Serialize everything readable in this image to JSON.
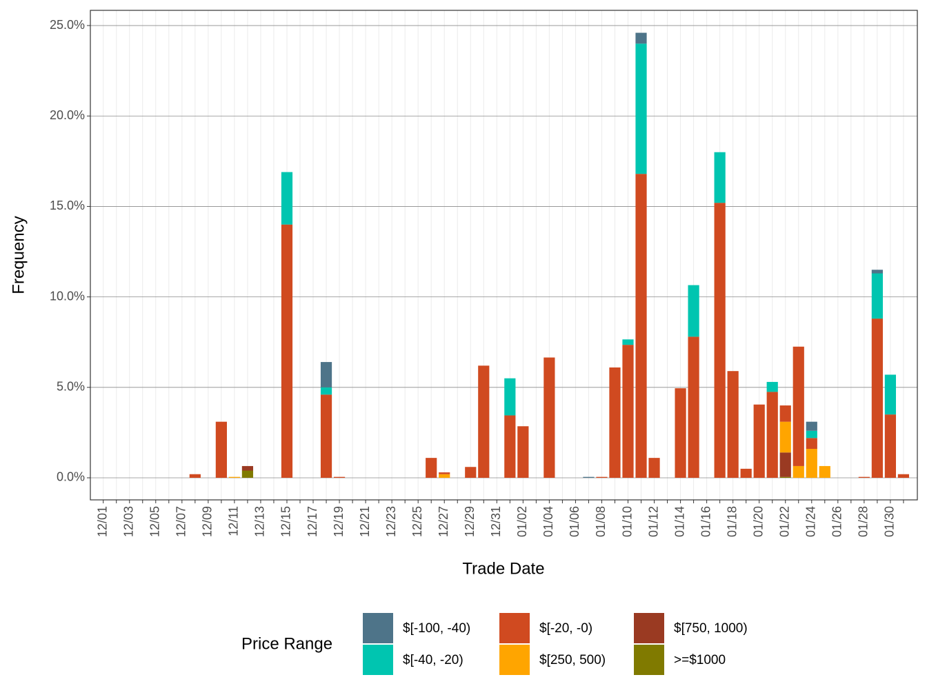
{
  "chart_data": {
    "type": "bar",
    "stacked": true,
    "grid": true,
    "legend": "bottom",
    "x_label": "Trade Date",
    "y_label": "Frequency",
    "legend_title": "Price Range",
    "categories": [
      "12/01",
      null,
      "12/03",
      null,
      "12/05",
      null,
      "12/07",
      null,
      "12/09",
      null,
      "12/11",
      null,
      "12/13",
      null,
      "12/15",
      null,
      "12/17",
      null,
      "12/19",
      null,
      "12/21",
      null,
      "12/23",
      null,
      "12/25",
      null,
      "12/27",
      null,
      "12/29",
      null,
      "12/31",
      null,
      "01/02",
      null,
      "01/04",
      null,
      "01/06",
      null,
      "01/08",
      null,
      "01/10",
      null,
      "01/12",
      null,
      "01/14",
      null,
      "01/16",
      null,
      "01/18",
      null,
      "01/20",
      null,
      "01/22",
      null,
      "01/24",
      null,
      "01/26",
      null,
      "01/28",
      null,
      "01/30",
      null
    ],
    "ylim": [
      -1.22,
      25.84
    ],
    "yticks": [
      {
        "value": 0,
        "label": "0.0%"
      },
      {
        "value": 5,
        "label": "5.0%"
      },
      {
        "value": 10,
        "label": "10.0%"
      },
      {
        "value": 15,
        "label": "15.0%"
      },
      {
        "value": 20,
        "label": "20.0%"
      },
      {
        "value": 25,
        "label": "25.0%"
      }
    ],
    "series": [
      {
        "name": "$[-100, -40)",
        "color": "#4e7489",
        "values": [
          0,
          0,
          0,
          0,
          0,
          0,
          0,
          0,
          0,
          0,
          0,
          0,
          0,
          0,
          0,
          0,
          0,
          1.4,
          0,
          0,
          0,
          0,
          0,
          0,
          0,
          0,
          0,
          0,
          0,
          0,
          0,
          0,
          0,
          0,
          0,
          0,
          0,
          0.05,
          0,
          0,
          0,
          0.6,
          0,
          0,
          0,
          0,
          0,
          0,
          0,
          0,
          0,
          0,
          0,
          0,
          0.5,
          0,
          0,
          0,
          0,
          0.2,
          0,
          0
        ]
      },
      {
        "name": "$[-40, -20)",
        "color": "#00c5b0",
        "values": [
          0,
          0,
          0,
          0,
          0,
          0,
          0,
          0,
          0,
          0,
          0,
          0,
          0,
          0,
          2.9,
          0,
          0,
          0.4,
          0,
          0,
          0,
          0,
          0,
          0,
          0,
          0,
          0,
          0,
          0,
          0,
          0,
          2.05,
          0,
          0,
          0,
          0,
          0,
          0,
          0,
          0,
          0.3,
          7.2,
          0,
          0,
          0,
          2.85,
          0,
          2.8,
          0,
          0,
          0,
          0.55,
          0,
          0,
          0.4,
          0,
          0,
          0,
          0,
          2.5,
          2.2,
          0
        ]
      },
      {
        "name": "$[-20, -0)",
        "color": "#d04a20",
        "values": [
          0,
          0,
          0,
          0,
          0,
          0,
          0,
          0.2,
          0,
          3.1,
          0,
          0,
          0,
          0,
          14.0,
          0,
          0,
          4.6,
          0.05,
          0,
          0,
          0,
          0,
          0,
          0,
          1.1,
          0.1,
          0,
          0.6,
          6.2,
          0,
          3.45,
          2.85,
          0,
          6.65,
          0,
          0,
          0,
          0.05,
          6.1,
          7.35,
          16.8,
          1.1,
          0,
          4.95,
          7.8,
          0,
          15.2,
          5.9,
          0.5,
          4.05,
          4.75,
          0.9,
          6.6,
          0.6,
          0,
          0,
          0,
          0.05,
          8.8,
          3.5,
          0.2
        ]
      },
      {
        "name": "$[250, 500)",
        "color": "#ffa500",
        "values": [
          0,
          0,
          0,
          0,
          0,
          0,
          0,
          0,
          0,
          0,
          0.05,
          0,
          0,
          0,
          0,
          0,
          0,
          0,
          0,
          0,
          0,
          0,
          0,
          0,
          0,
          0,
          0.2,
          0,
          0,
          0,
          0,
          0,
          0,
          0,
          0,
          0,
          0,
          0,
          0,
          0,
          0,
          0,
          0,
          0,
          0,
          0,
          0,
          0,
          0,
          0,
          0,
          0,
          1.7,
          0.65,
          1.6,
          0.65,
          0,
          0,
          0,
          0,
          0,
          0
        ]
      },
      {
        "name": "$[750, 1000)",
        "color": "#9a3a22",
        "values": [
          0,
          0,
          0,
          0,
          0,
          0,
          0,
          0,
          0,
          0,
          0,
          0.25,
          0,
          0,
          0,
          0,
          0,
          0,
          0,
          0,
          0,
          0,
          0,
          0,
          0,
          0,
          0,
          0,
          0,
          0,
          0,
          0,
          0,
          0,
          0,
          0,
          0,
          0,
          0,
          0,
          0,
          0,
          0,
          0,
          0,
          0,
          0,
          0,
          0,
          0,
          0,
          0,
          1.35,
          0,
          0,
          0,
          0,
          0,
          0,
          0,
          0,
          0
        ]
      },
      {
        "name": ">=$1000",
        "color": "#807a00",
        "values": [
          0,
          0,
          0,
          0,
          0,
          0,
          0,
          0,
          0,
          0,
          0,
          0.4,
          0,
          0,
          0,
          0,
          0,
          0,
          0,
          0,
          0,
          0,
          0,
          0,
          0,
          0,
          0,
          0,
          0,
          0,
          0,
          0,
          0,
          0,
          0,
          0,
          0,
          0,
          0,
          0,
          0,
          0,
          0,
          0,
          0,
          0,
          0,
          0,
          0,
          0,
          0,
          0,
          0.05,
          0,
          0,
          0,
          0,
          0,
          0,
          0,
          0,
          0
        ]
      }
    ]
  }
}
